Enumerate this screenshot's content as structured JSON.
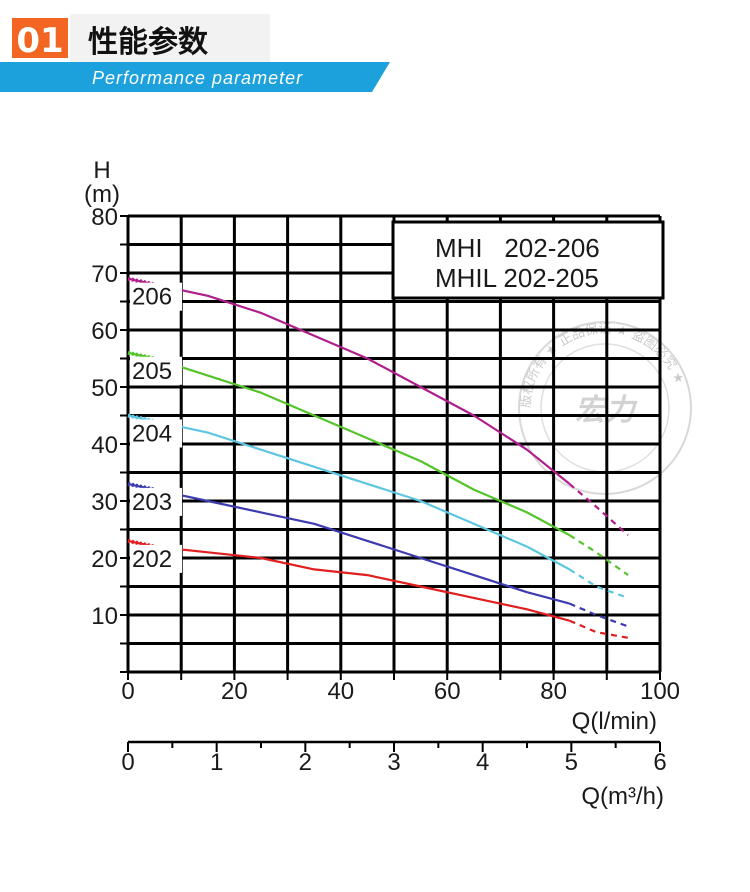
{
  "header": {
    "number": "01",
    "title": "性能参数",
    "subtitle": "Performance parameter",
    "accent_color": "#f26522",
    "band_color": "#1ca1dc"
  },
  "chart_data": {
    "type": "line",
    "title_lines": [
      "MHI   202-206",
      "MHIL 202-205"
    ],
    "ylabel_top": "H",
    "ylabel_unit": "(m)",
    "xlabel": "Q(l/min)",
    "x2label": "Q(m³/h)",
    "xlim": [
      0,
      100
    ],
    "ylim": [
      0,
      80
    ],
    "x2lim": [
      0,
      6
    ],
    "x_ticks": [
      0,
      20,
      40,
      60,
      80,
      100
    ],
    "y_ticks": [
      10,
      20,
      30,
      40,
      50,
      60,
      70,
      80
    ],
    "x2_ticks": [
      0,
      1,
      2,
      3,
      4,
      5,
      6
    ],
    "series": [
      {
        "name": "206",
        "color": "#b01e8c",
        "x": [
          0,
          5,
          15,
          25,
          35,
          45,
          55,
          65,
          75,
          83
        ],
        "y": [
          69,
          68,
          66,
          63,
          59,
          55,
          50,
          45,
          39,
          33
        ],
        "dash_x": [
          83,
          88,
          94
        ],
        "dash_y": [
          33,
          29,
          24
        ]
      },
      {
        "name": "205",
        "color": "#55c32a",
        "x": [
          0,
          5,
          15,
          25,
          35,
          45,
          55,
          65,
          75,
          83
        ],
        "y": [
          56,
          55,
          52,
          49,
          45,
          41,
          37,
          32,
          28,
          24
        ],
        "dash_x": [
          83,
          88,
          94
        ],
        "dash_y": [
          24,
          21,
          17
        ]
      },
      {
        "name": "204",
        "color": "#5ec6e0",
        "x": [
          0,
          5,
          15,
          25,
          35,
          45,
          55,
          65,
          75,
          83
        ],
        "y": [
          45,
          44,
          42,
          39,
          36,
          33,
          30,
          26,
          22,
          18
        ],
        "dash_x": [
          83,
          88,
          94
        ],
        "dash_y": [
          18,
          15,
          13
        ]
      },
      {
        "name": "203",
        "color": "#3c3cb0",
        "x": [
          0,
          5,
          15,
          25,
          35,
          45,
          55,
          65,
          75,
          83
        ],
        "y": [
          33,
          32,
          30,
          28,
          26,
          23,
          20,
          17,
          14,
          12
        ],
        "dash_x": [
          83,
          88,
          94
        ],
        "dash_y": [
          12,
          10,
          8
        ]
      },
      {
        "name": "202",
        "color": "#e02020",
        "x": [
          0,
          5,
          15,
          25,
          35,
          45,
          55,
          65,
          75,
          83
        ],
        "y": [
          23,
          22,
          21,
          20,
          18,
          17,
          15,
          13,
          11,
          9
        ],
        "dash_x": [
          83,
          88,
          94
        ],
        "dash_y": [
          9,
          7,
          6
        ]
      }
    ]
  },
  "watermark": {
    "ring_text": "版权所有 ★ 正品保证 ★ 盗图必究 ★",
    "center_text": "宏力"
  }
}
